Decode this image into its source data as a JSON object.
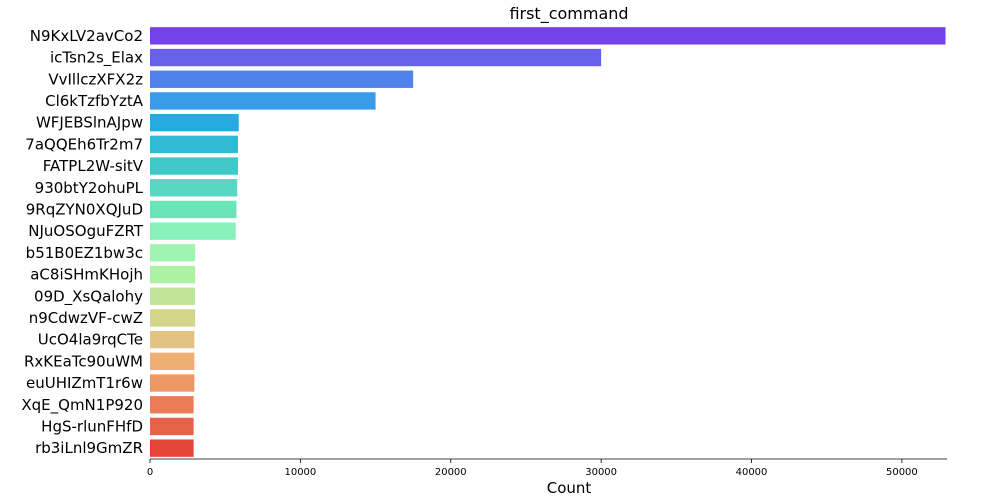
{
  "chart_data": {
    "type": "bar",
    "orientation": "horizontal",
    "title": "first_command",
    "xlabel": "Count",
    "ylabel": "",
    "xlim": [
      0,
      53000
    ],
    "xticks": [
      0,
      10000,
      20000,
      30000,
      40000,
      50000
    ],
    "grid": false,
    "categories": [
      "N9KxLV2avCo2",
      "icTsn2s_Elax",
      "VvIllczXFX2z",
      "Cl6kTzfbYztA",
      "WFJEBSlnAJpw",
      "7aQQEh6Tr2m7",
      "FATPL2W-sitV",
      "930btY2ohuPL",
      "9RqZYN0XQJuD",
      "NJuOSOguFZRT",
      "b51B0EZ1bw3c",
      "aC8iSHmKHojh",
      "09D_XsQalohy",
      "n9CdwzVF-cwZ",
      "UcO4la9rqCTe",
      "RxKEaTc90uWM",
      "euUHIZmT1r6w",
      "XqE_QmN1P920",
      "HgS-rlunFHfD",
      "rb3iLnl9GmZR"
    ],
    "values": [
      52900,
      30000,
      17500,
      15000,
      5900,
      5850,
      5850,
      5800,
      5750,
      5700,
      3000,
      3000,
      3000,
      3000,
      2950,
      2950,
      2950,
      2900,
      2900,
      2900
    ],
    "colors": [
      "#7440e8",
      "#6761ea",
      "#5082ec",
      "#3a9be9",
      "#25abdf",
      "#30bbd4",
      "#3fc8c8",
      "#57d7c4",
      "#6ce4b9",
      "#88f1bb",
      "#9ef5b0",
      "#aef0a4",
      "#c0e59a",
      "#d2d58a",
      "#e3c384",
      "#eeae74",
      "#ee9766",
      "#ea7c56",
      "#e66349",
      "#e54336"
    ]
  }
}
